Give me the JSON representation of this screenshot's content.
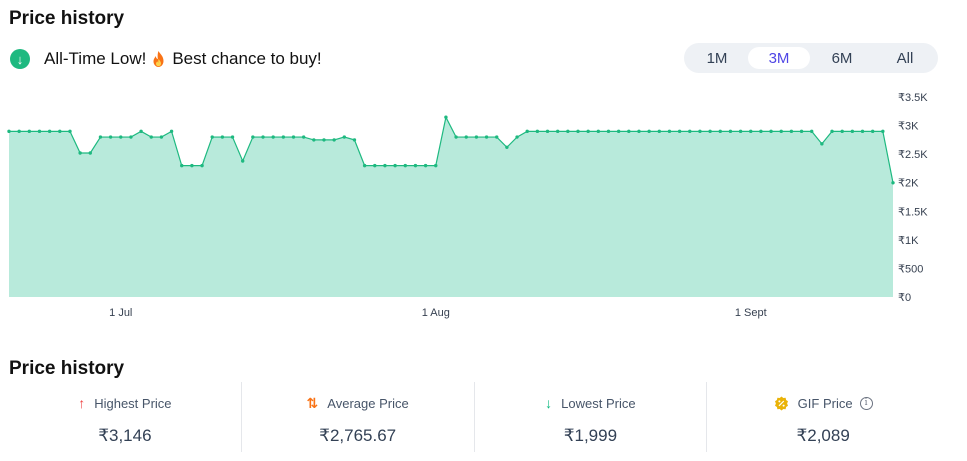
{
  "header": {
    "title": "Price history"
  },
  "alert": {
    "text_before": "All-Time Low!",
    "text_after": "Best chance to buy!",
    "icon": "arrow-down-circle-icon",
    "emoji": "fire-icon"
  },
  "tabs": [
    {
      "label": "1M",
      "active": false
    },
    {
      "label": "3M",
      "active": true
    },
    {
      "label": "6M",
      "active": false
    },
    {
      "label": "All",
      "active": false
    }
  ],
  "chart_data": {
    "type": "area",
    "title": "",
    "xlabel": "",
    "ylabel": "",
    "x_start": "2024-06-20",
    "x_ticks": [
      {
        "label": "1 Jul",
        "date": "2024-07-01"
      },
      {
        "label": "1 Aug",
        "date": "2024-08-01"
      },
      {
        "label": "1 Sept",
        "date": "2024-09-01"
      }
    ],
    "y_ticks": [
      {
        "label": "₹0",
        "value": 0
      },
      {
        "label": "₹500",
        "value": 500
      },
      {
        "label": "₹1K",
        "value": 1000
      },
      {
        "label": "₹1.5K",
        "value": 1500
      },
      {
        "label": "₹2K",
        "value": 2000
      },
      {
        "label": "₹2.5K",
        "value": 2500
      },
      {
        "label": "₹3K",
        "value": 3000
      },
      {
        "label": "₹3.5K",
        "value": 3500
      }
    ],
    "ylim": [
      0,
      3500
    ],
    "grid": false,
    "line_color": "#1eb980",
    "fill_color": "#b8eadb",
    "series": [
      {
        "values": [
          2899,
          2899,
          2899,
          2899,
          2899,
          2899,
          2899,
          2520,
          2520,
          2799,
          2799,
          2799,
          2799,
          2899,
          2799,
          2799,
          2899,
          2299,
          2299,
          2299,
          2799,
          2799,
          2799,
          2380,
          2799,
          2799,
          2799,
          2799,
          2799,
          2799,
          2749,
          2749,
          2749,
          2799,
          2749,
          2299,
          2299,
          2299,
          2299,
          2299,
          2299,
          2299,
          2299,
          3146,
          2799,
          2799,
          2799,
          2799,
          2799,
          2620,
          2799,
          2899,
          2899,
          2899,
          2899,
          2899,
          2899,
          2899,
          2899,
          2899,
          2899,
          2899,
          2899,
          2899,
          2899,
          2899,
          2899,
          2899,
          2899,
          2899,
          2899,
          2899,
          2899,
          2899,
          2899,
          2899,
          2899,
          2899,
          2899,
          2899,
          2680,
          2899,
          2899,
          2899,
          2899,
          2899,
          2899,
          1999
        ]
      }
    ]
  },
  "stats_title": "Price history",
  "stats": [
    {
      "label": "Highest Price",
      "value": "₹3,146",
      "icon": "arrow-up-icon",
      "color": "#ef4444"
    },
    {
      "label": "Average Price",
      "value": "₹2,765.67",
      "icon": "arrows-up-down-icon",
      "color": "#f97316"
    },
    {
      "label": "Lowest Price",
      "value": "₹1,999",
      "icon": "arrow-down-icon",
      "color": "#10b981"
    },
    {
      "label": "GIF Price",
      "value": "₹2,089",
      "icon": "gif-badge-icon",
      "color": "#eab308"
    }
  ]
}
